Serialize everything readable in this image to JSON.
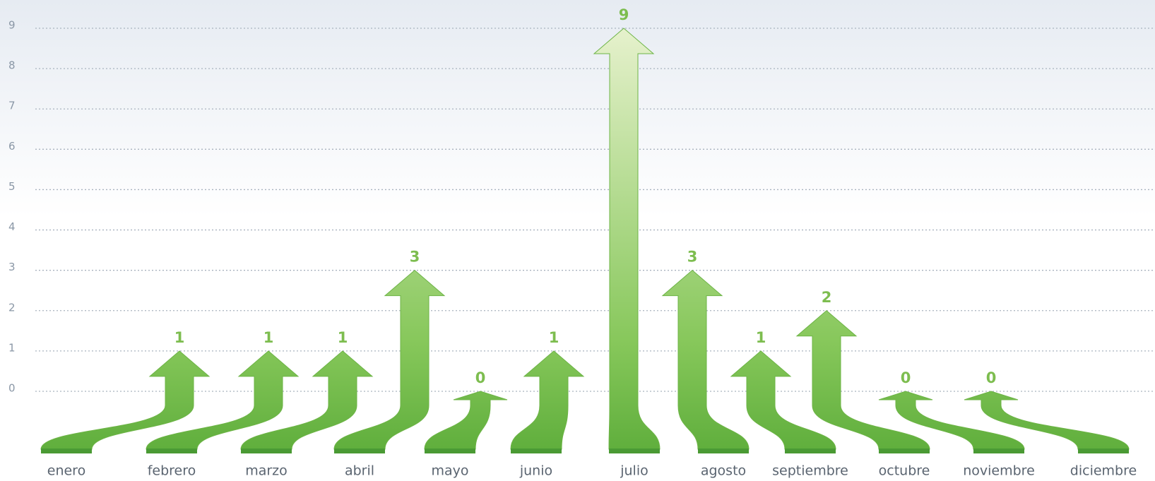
{
  "chart_data": {
    "type": "arrow",
    "categories": [
      "enero",
      "febrero",
      "marzo",
      "abril",
      "mayo",
      "junio",
      "julio",
      "agosto",
      "septiembre",
      "octubre",
      "noviembre",
      "diciembre"
    ],
    "values": [
      1,
      1,
      1,
      3,
      0,
      1,
      9,
      3,
      1,
      2,
      0,
      0
    ],
    "color": "#7cc24f",
    "ylim": [
      0,
      9
    ],
    "yticks": [
      0,
      1,
      2,
      3,
      4,
      5,
      6,
      7,
      8,
      9
    ],
    "grid": true
  }
}
